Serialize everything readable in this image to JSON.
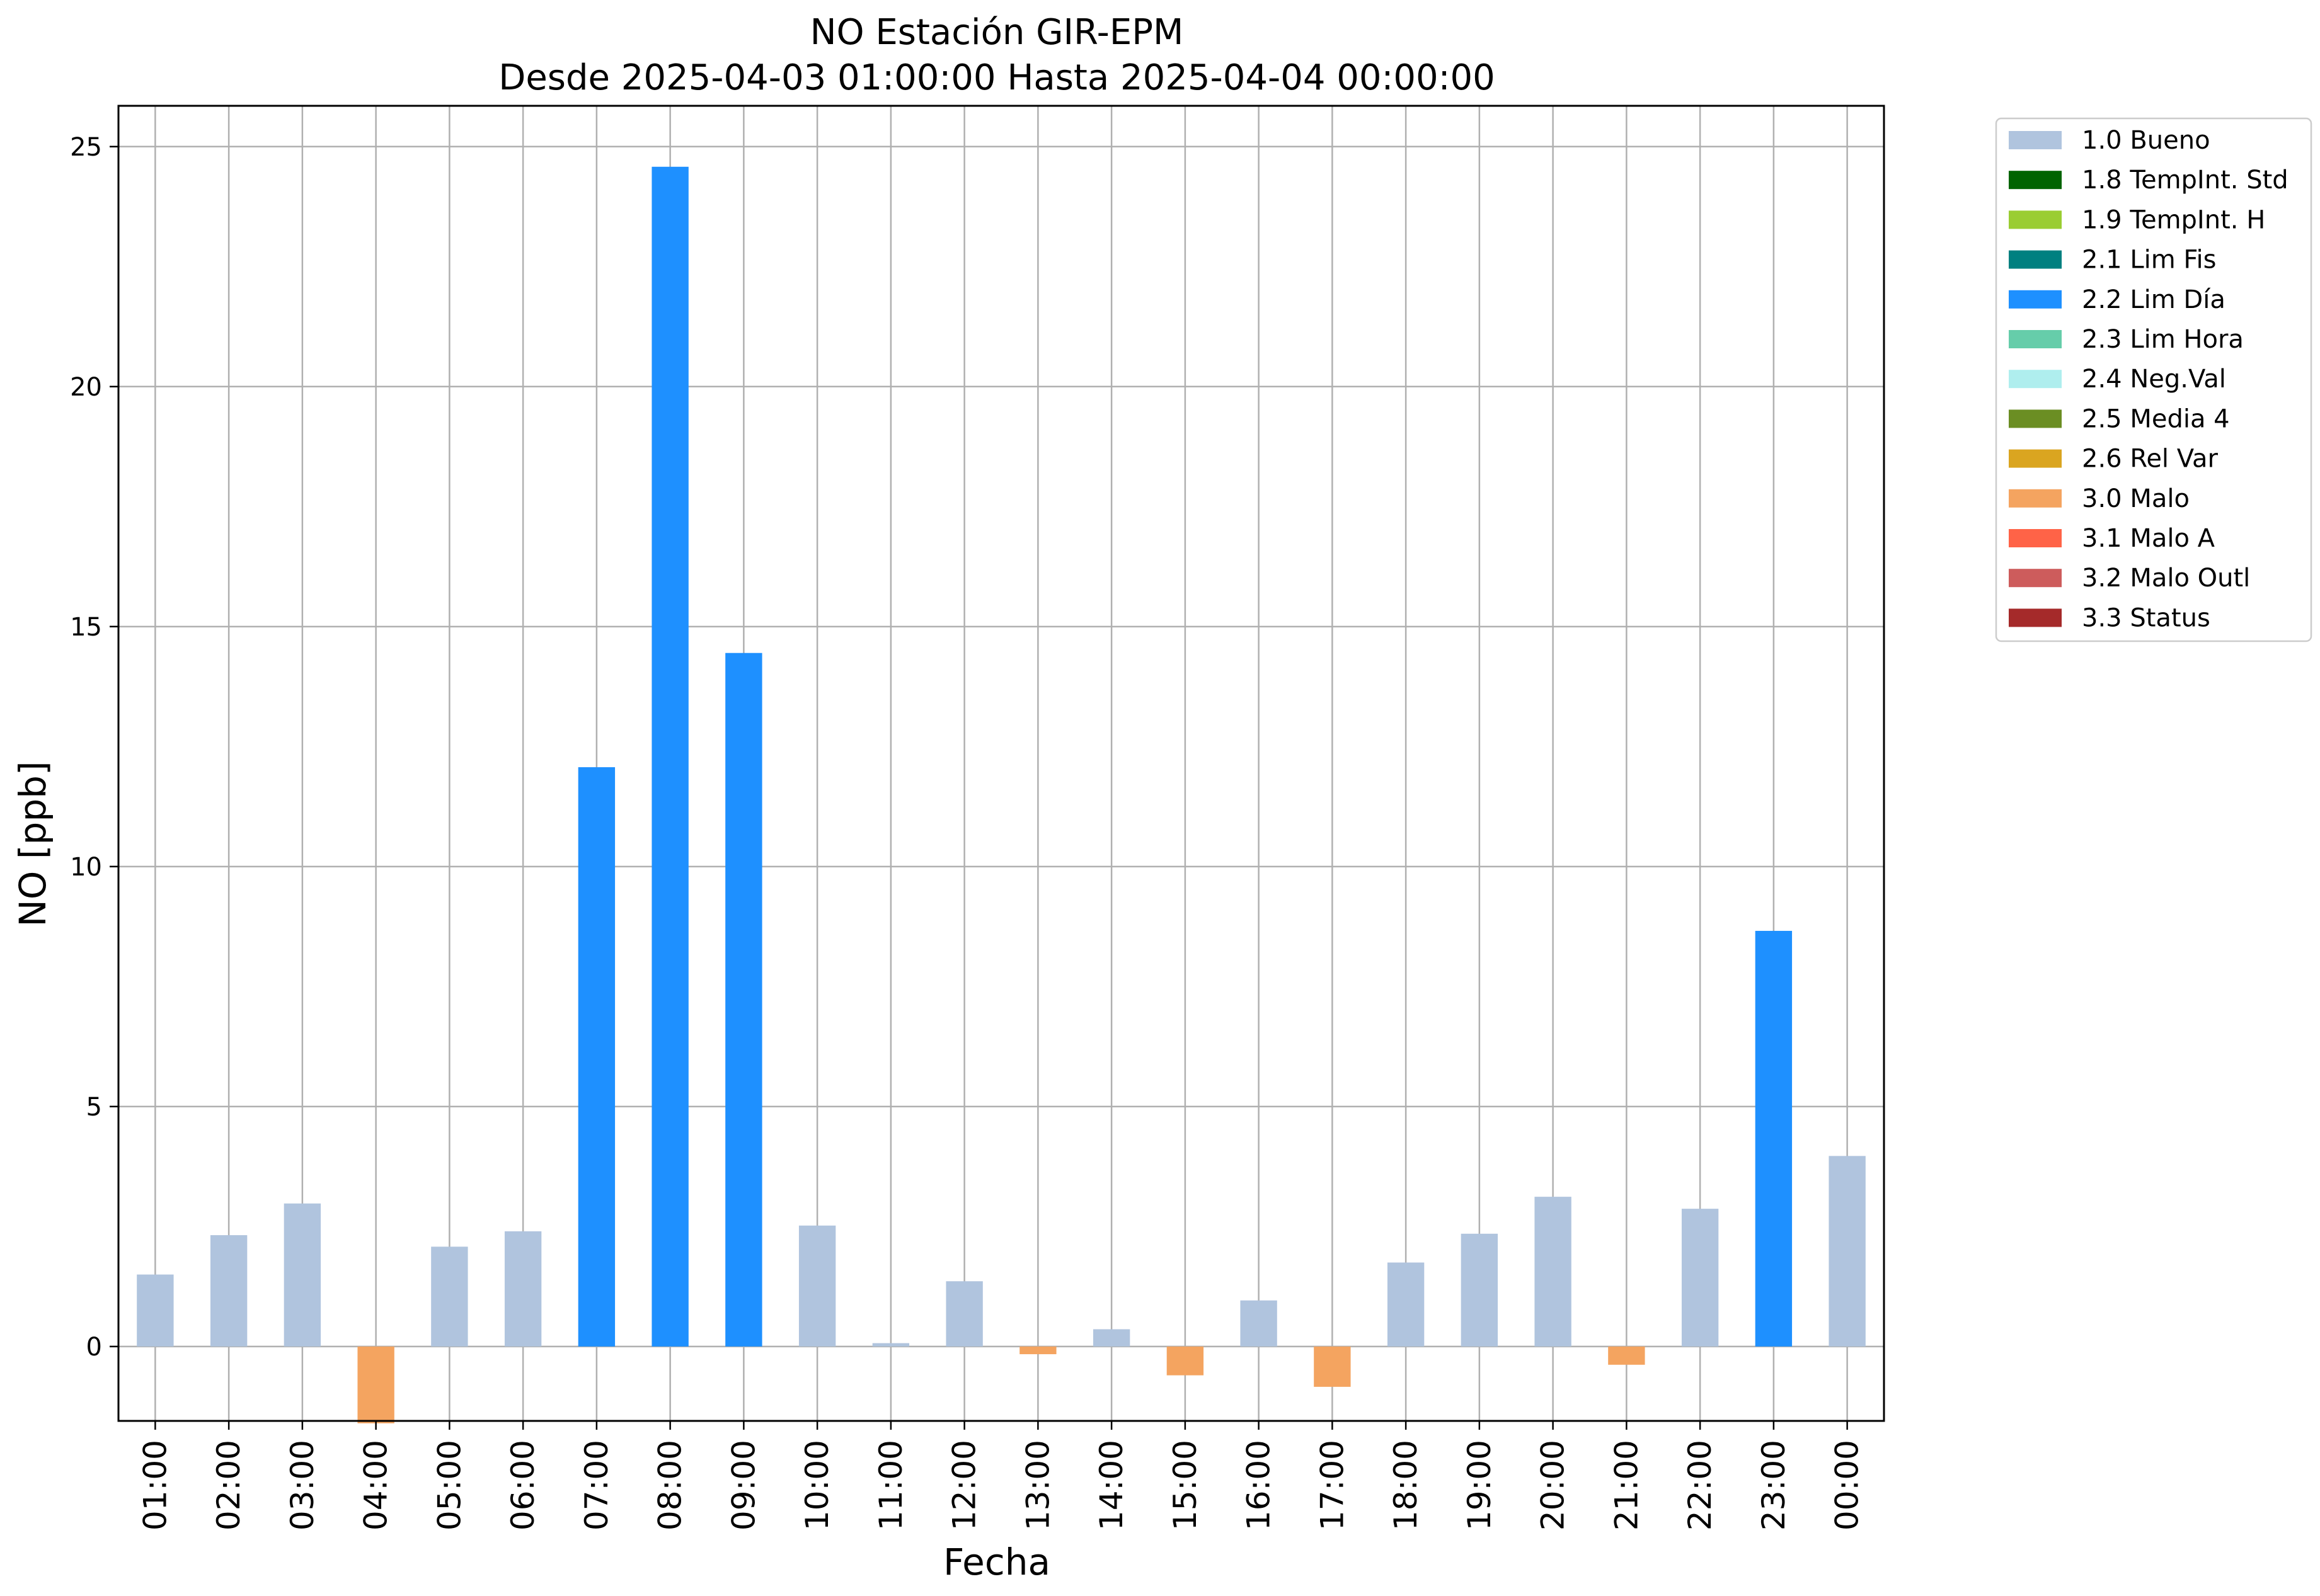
{
  "chart_data": {
    "type": "bar",
    "title": "NO Estación GIR-EPM",
    "subtitle": "Desde 2025-04-03 01:00:00 Hasta 2025-04-04 00:00:00",
    "xlabel": "Fecha",
    "ylabel": "NO [ppb]",
    "ylim": [
      -1.55,
      25.85
    ],
    "yticks": [
      0,
      5,
      10,
      15,
      20,
      25
    ],
    "grid": true,
    "legend_position": "outside-right-top",
    "categories": [
      "01:00",
      "02:00",
      "03:00",
      "04:00",
      "05:00",
      "06:00",
      "07:00",
      "08:00",
      "09:00",
      "10:00",
      "11:00",
      "12:00",
      "13:00",
      "14:00",
      "15:00",
      "16:00",
      "17:00",
      "18:00",
      "19:00",
      "20:00",
      "21:00",
      "22:00",
      "23:00",
      "00:00"
    ],
    "values": [
      1.5,
      2.32,
      2.98,
      -1.6,
      2.08,
      2.4,
      12.07,
      24.58,
      14.45,
      2.52,
      0.07,
      1.36,
      -0.16,
      0.36,
      -0.6,
      0.96,
      -0.84,
      1.75,
      2.35,
      3.12,
      -0.38,
      2.87,
      8.66,
      3.97
    ],
    "flags": [
      "1.0 Bueno",
      "1.0 Bueno",
      "1.0 Bueno",
      "3.0 Malo",
      "1.0 Bueno",
      "1.0 Bueno",
      "2.2 Lim Día",
      "2.2 Lim Día",
      "2.2 Lim Día",
      "1.0 Bueno",
      "1.0 Bueno",
      "1.0 Bueno",
      "3.0 Malo",
      "1.0 Bueno",
      "3.0 Malo",
      "1.0 Bueno",
      "3.0 Malo",
      "1.0 Bueno",
      "1.0 Bueno",
      "1.0 Bueno",
      "3.0 Malo",
      "1.0 Bueno",
      "2.2 Lim Día",
      "1.0 Bueno"
    ],
    "legend": [
      {
        "label": "1.0 Bueno",
        "color": "#b0c4de"
      },
      {
        "label": "1.8 TempInt. Std",
        "color": "#006400"
      },
      {
        "label": "1.9 TempInt. H",
        "color": "#9acd32"
      },
      {
        "label": "2.1 Lim Fis",
        "color": "#008080"
      },
      {
        "label": "2.2 Lim Día",
        "color": "#1e90ff"
      },
      {
        "label": "2.3 Lim Hora",
        "color": "#66cdaa"
      },
      {
        "label": "2.4 Neg.Val",
        "color": "#afeeee"
      },
      {
        "label": "2.5 Media 4",
        "color": "#6b8e23"
      },
      {
        "label": "2.6 Rel Var",
        "color": "#daa520"
      },
      {
        "label": "3.0 Malo",
        "color": "#f4a460"
      },
      {
        "label": "3.1 Malo A",
        "color": "#ff6347"
      },
      {
        "label": "3.2 Malo Outl",
        "color": "#cd5c5c"
      },
      {
        "label": "3.3 Status",
        "color": "#a52a2a"
      }
    ]
  }
}
